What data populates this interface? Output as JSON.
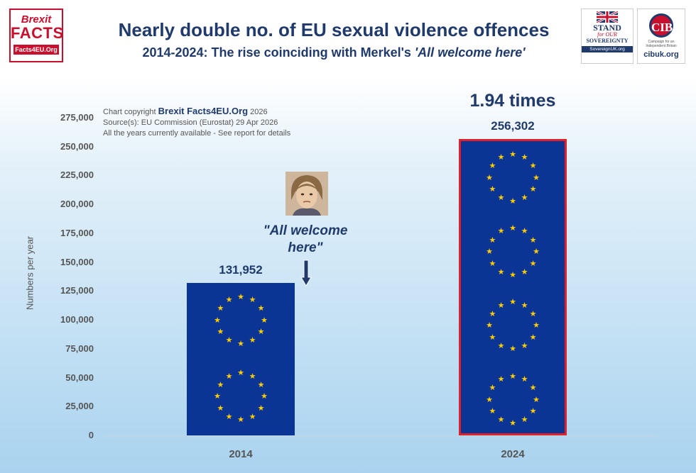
{
  "brand_logo": {
    "line1": "Brexit",
    "line2": "FACTS",
    "line3": "Facts4EU.Org"
  },
  "title": "Nearly double no. of EU sexual violence offences",
  "subtitle": {
    "prefix": "2014-2024: The rise coinciding with Merkel's ",
    "quote": "'All welcome here'"
  },
  "partner_logos": {
    "stand": {
      "line1": "STAND",
      "line2": "for OUR",
      "line3": "SOVEREIGNTY",
      "url": "SovereignUK.org"
    },
    "cib": {
      "mark": "CIB",
      "tagline": "Campaign for an Independent Britain",
      "url": "cibuk.org"
    }
  },
  "copyright": {
    "prefix": "Chart copyright ",
    "brand": "Brexit Facts4EU.Org",
    "year": " 2026",
    "source": "Source(s): EU Commission (Eurostat) 29 Apr 2026",
    "note": "All the years currently available - See report for details"
  },
  "annotation": {
    "quote_line1": "\"All welcome",
    "quote_line2": "here\"",
    "photo_icon": "merkel-portrait",
    "arrow_icon": "down-arrow-icon",
    "multiplier": "1.94 times"
  },
  "chart_data": {
    "type": "bar",
    "categories": [
      "2014",
      "2024"
    ],
    "values": [
      131952,
      256302
    ],
    "value_labels": [
      "131,952",
      "256,302"
    ],
    "title": "Nearly double no. of EU sexual violence offences",
    "subtitle": "2014-2024: The rise coinciding with Merkel's 'All welcome here'",
    "xlabel": "",
    "ylabel": "Numbers per year",
    "ylim": [
      0,
      275000
    ],
    "yticks": [
      0,
      25000,
      50000,
      75000,
      100000,
      125000,
      150000,
      175000,
      200000,
      225000,
      250000,
      275000
    ],
    "ytick_labels": [
      "0",
      "25,000",
      "50,000",
      "75,000",
      "100,000",
      "125,000",
      "150,000",
      "175,000",
      "200,000",
      "225,000",
      "250,000",
      "275,000"
    ],
    "grid": false,
    "bar_color": "#0a3594",
    "star_color": "#ffcc00",
    "highlight_border_color": "#e0202a",
    "highlighted_category": "2024"
  }
}
